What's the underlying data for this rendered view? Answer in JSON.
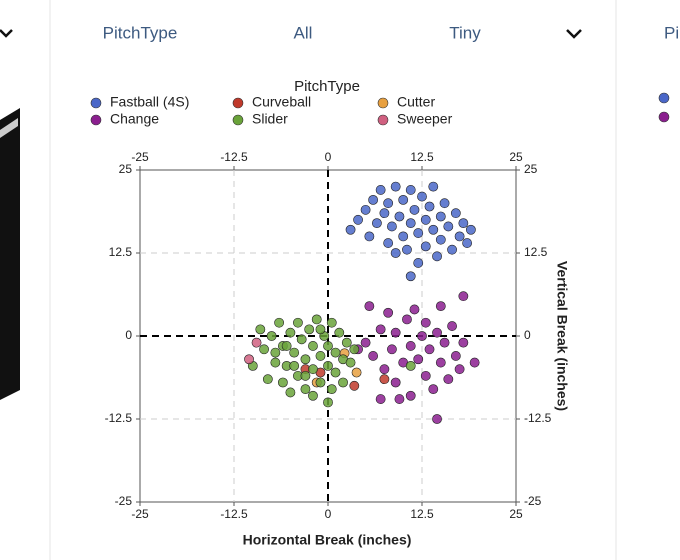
{
  "panel": {
    "filters": [
      "PitchType",
      "All",
      "Tiny"
    ]
  },
  "neighbor_panel": {
    "label": "Pi"
  },
  "chart_data": {
    "type": "scatter",
    "legend_title": "PitchType",
    "xlabel": "Horizontal Break (inches)",
    "ylabel": "Vertical Break (inches)",
    "xlim": [
      -25,
      25
    ],
    "ylim": [
      -25,
      25
    ],
    "xticks": [
      -25,
      -12.5,
      0,
      12.5,
      25
    ],
    "yticks": [
      -25,
      -12.5,
      0,
      12.5,
      25
    ],
    "grid": true,
    "series": [
      {
        "name": "Fastball (4S)",
        "color": "#4a67c8",
        "x": [
          4,
          5,
          5.5,
          6,
          6.5,
          7,
          7.5,
          8,
          8,
          8.5,
          9,
          9,
          9.5,
          10,
          10,
          10.5,
          11,
          11,
          11.5,
          12,
          12,
          12.5,
          13,
          13,
          13.5,
          14,
          14,
          14.5,
          15,
          15,
          15.5,
          16,
          16.5,
          17,
          17.5,
          18,
          18.5,
          19,
          3,
          11
        ],
        "y": [
          17.5,
          19,
          15,
          20.5,
          17,
          22,
          18.5,
          14,
          20,
          16.5,
          22.5,
          12.5,
          18,
          15,
          20.5,
          13,
          17,
          22,
          19,
          15.5,
          11,
          21,
          17.5,
          13.5,
          19.5,
          16,
          22.5,
          12,
          18,
          14.5,
          20,
          16.5,
          13,
          18.5,
          15,
          17,
          14,
          16,
          16,
          9
        ]
      },
      {
        "name": "Curveball",
        "color": "#c0392b",
        "x": [
          -1,
          3.5,
          -3,
          7.5
        ],
        "y": [
          -5.5,
          -7.5,
          -5,
          -6.5
        ]
      },
      {
        "name": "Cutter",
        "color": "#e8a040",
        "x": [
          2.2,
          3.8,
          -1.5
        ],
        "y": [
          -2.6,
          -5.5,
          -7
        ]
      },
      {
        "name": "Change",
        "color": "#8b1f8f",
        "x": [
          5,
          5.5,
          6,
          7,
          7.5,
          8,
          8.5,
          9,
          9,
          10,
          10.5,
          11,
          11,
          11.5,
          12,
          12.5,
          13,
          13,
          13.5,
          14,
          14.5,
          15,
          15,
          15.5,
          16,
          16.5,
          17,
          17.5,
          18,
          18,
          19.5,
          14.5,
          9.5,
          7,
          4
        ],
        "y": [
          -1,
          4.5,
          -3,
          1,
          -5,
          3.5,
          -2,
          -7,
          0.5,
          -4,
          2.5,
          -1.5,
          -9,
          4,
          -3.5,
          0,
          -6,
          2,
          -2,
          -8,
          0.5,
          -4,
          4.5,
          -1,
          -6.5,
          1.5,
          -3,
          -5,
          6,
          -1,
          -4,
          -12.5,
          -9.5,
          -9.5,
          -2
        ]
      },
      {
        "name": "Slider",
        "color": "#6aa33a",
        "x": [
          -10,
          -9,
          -8.5,
          -8,
          -7.5,
          -7,
          -6.5,
          -6,
          -6,
          -5.5,
          -5,
          -5,
          -4.5,
          -4,
          -4,
          -3.5,
          -3,
          -3,
          -2.5,
          -2,
          -2,
          -1.5,
          -1,
          -1,
          -0.5,
          0,
          0,
          0.5,
          0.5,
          1,
          1,
          1.5,
          2,
          2,
          2.5,
          3,
          -3,
          -7,
          -2,
          -4.5,
          -1,
          -5.5,
          0,
          3.5,
          11
        ],
        "y": [
          -4.5,
          1,
          -2,
          -6.5,
          0,
          -4,
          2,
          -7,
          -1.5,
          -4.5,
          0.5,
          -8.5,
          -2.5,
          2,
          -6,
          -0.5,
          -3.5,
          -8,
          1,
          -5,
          -1.5,
          2.5,
          -3,
          -7,
          0,
          -4.5,
          -1.5,
          -8,
          2,
          -2.5,
          -5.5,
          0.5,
          -3.5,
          -7,
          -1,
          -4,
          -6,
          -2.5,
          -9,
          -4.5,
          1,
          -1.5,
          -10,
          -2,
          -4.5
        ]
      },
      {
        "name": "Sweeper",
        "color": "#d06080",
        "x": [
          -9.5,
          -10.5
        ],
        "y": [
          -1,
          -3.5
        ]
      }
    ]
  }
}
